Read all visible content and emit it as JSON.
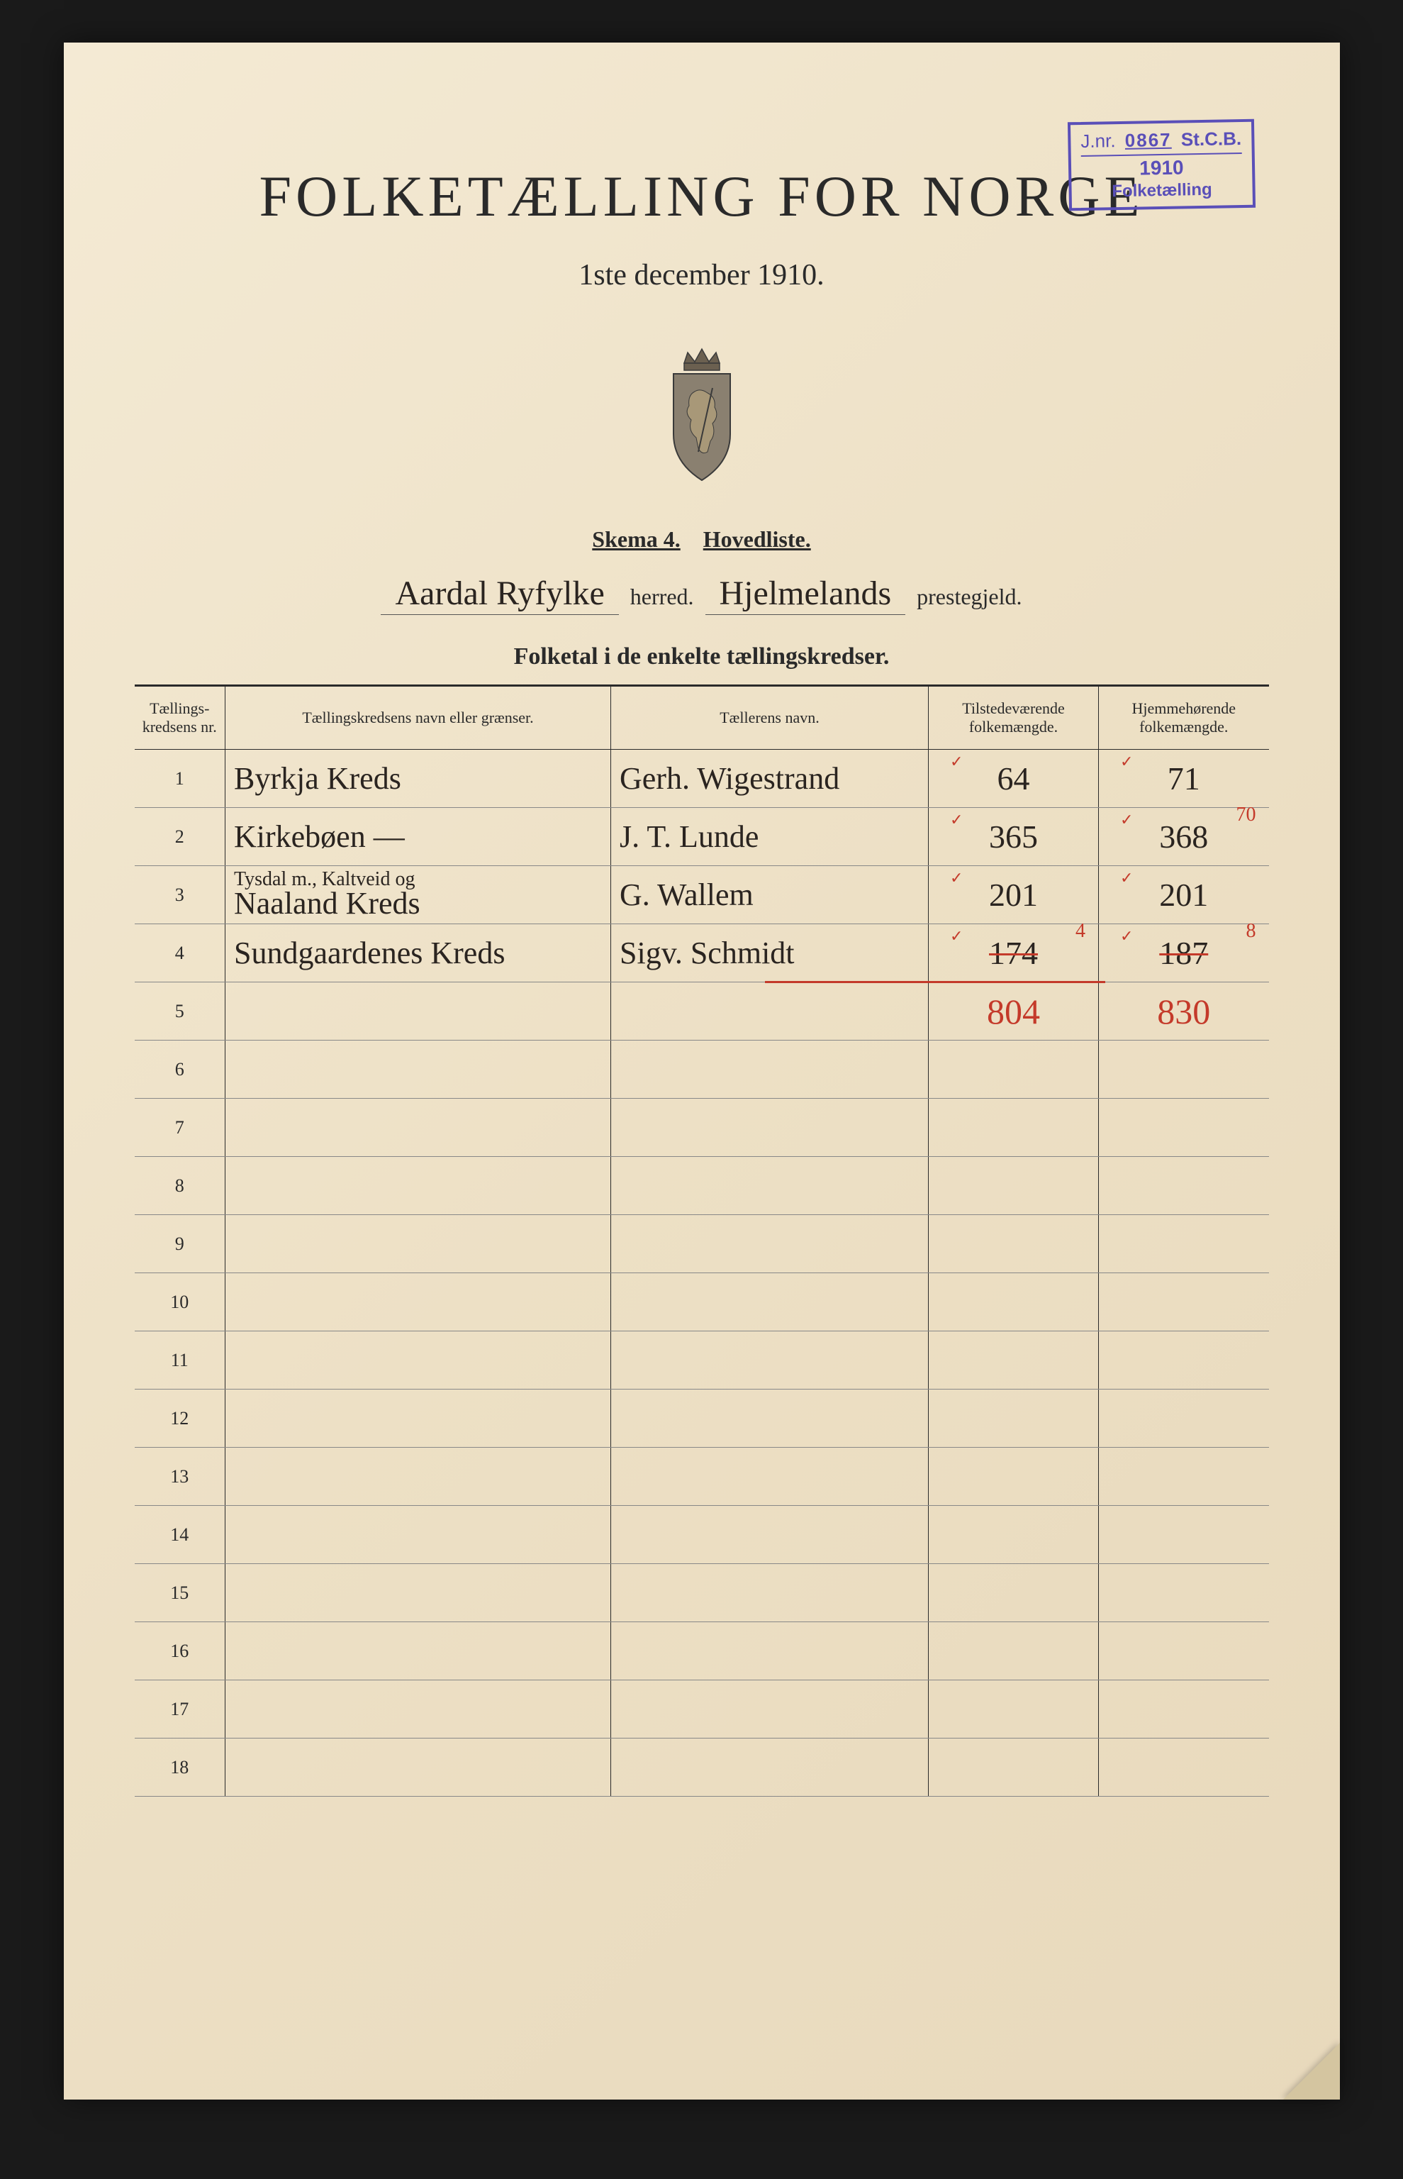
{
  "stamp": {
    "jnr_label": "J.nr.",
    "jnr_number": "0867",
    "stcb": "St.C.B.",
    "year": "1910",
    "label": "Folketælling"
  },
  "title": "FOLKETÆLLING FOR NORGE",
  "subtitle": "1ste december 1910.",
  "skema": {
    "left": "Skema 4.",
    "right": "Hovedliste."
  },
  "herred": {
    "name": "Aardal Ryfylke",
    "herred_label": "herred.",
    "prestegjeld": "Hjelmelands",
    "prestegjeld_label": "prestegjeld."
  },
  "section_title": "Folketal i de enkelte tællingskredser.",
  "columns": {
    "num": "Tællings-\nkredsens nr.",
    "name": "Tællingskredsens navn eller grænser.",
    "counter": "Tællerens navn.",
    "pop_present": "Tilstedeværende\nfolkemængde.",
    "pop_resident": "Hjemmehørende\nfolkemængde."
  },
  "rows": [
    {
      "num": "1",
      "name": "Byrkja Kreds",
      "name_sub": "",
      "counter": "Gerh. Wigestrand",
      "pop1": "64",
      "pop2": "71",
      "pop2_corr": ""
    },
    {
      "num": "2",
      "name": "Kirkebøen   —",
      "name_sub": "",
      "counter": "J. T. Lunde",
      "pop1": "365",
      "pop2": "368",
      "pop2_corr": "70"
    },
    {
      "num": "3",
      "name": "Naaland Kreds",
      "name_sub": "Tysdal m., Kaltveid og",
      "counter": "G. Wallem",
      "pop1": "201",
      "pop2": "201"
    },
    {
      "num": "4",
      "name": "Sundgaardenes Kreds",
      "name_sub": "",
      "counter": "Sigv. Schmidt",
      "pop1": "174",
      "pop1_strike": true,
      "pop1_corr": "4",
      "pop2": "187",
      "pop2_strike": true,
      "pop2_corr": "8"
    }
  ],
  "totals": {
    "pop1": "804",
    "pop2": "830"
  },
  "empty_row_numbers": [
    "5",
    "6",
    "7",
    "8",
    "9",
    "10",
    "11",
    "12",
    "13",
    "14",
    "15",
    "16",
    "17",
    "18"
  ],
  "colors": {
    "page_bg": "#f0e5cd",
    "ink": "#2a2420",
    "print": "#2a2a2a",
    "stamp": "#5a4fb8",
    "red": "#c43a2a",
    "border": "#1a1a1a"
  },
  "crest_svg": {
    "shield_fill": "#8a8070",
    "shield_stroke": "#3a3a3a",
    "crown_fill": "#6b6050"
  }
}
